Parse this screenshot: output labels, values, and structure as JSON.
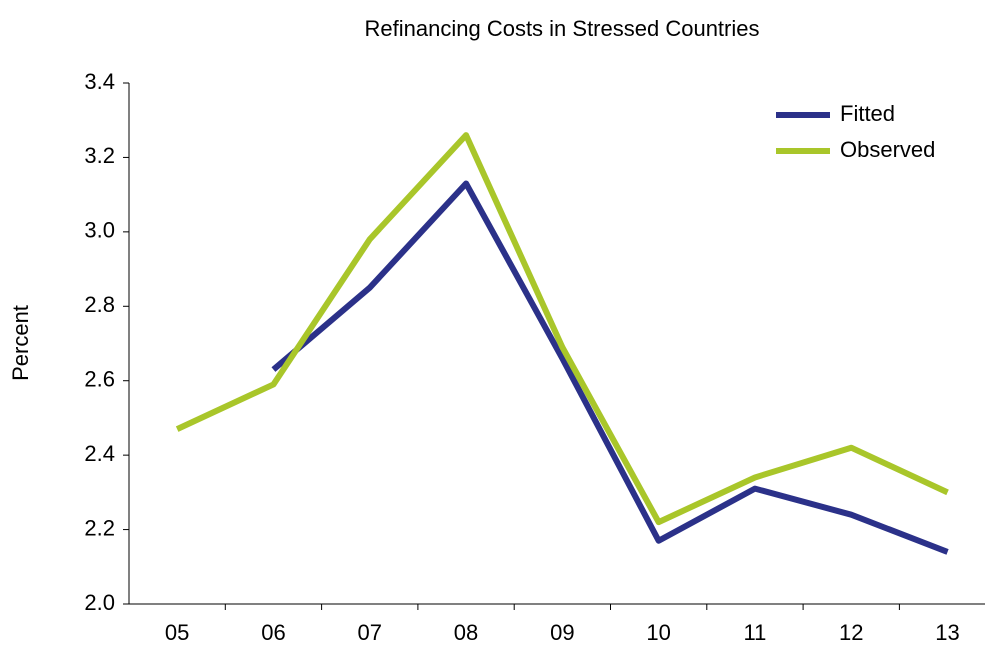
{
  "chart_data": {
    "type": "line",
    "title": "Refinancing Costs in Stressed Countries",
    "y_label": "Percent",
    "categories": [
      "05",
      "06",
      "07",
      "08",
      "09",
      "10",
      "11",
      "12",
      "13"
    ],
    "series": [
      {
        "name": "Fitted",
        "color": "#2b3189",
        "values": [
          null,
          2.63,
          2.85,
          3.13,
          2.66,
          2.17,
          2.31,
          2.24,
          2.14
        ]
      },
      {
        "name": "Observed",
        "color": "#a9c62a",
        "values": [
          2.47,
          2.59,
          2.98,
          3.26,
          2.69,
          2.22,
          2.34,
          2.42,
          2.3
        ]
      }
    ],
    "ylim": [
      2.0,
      3.4
    ],
    "yticks": [
      {
        "value": 2.0,
        "label": "2.0"
      },
      2.2,
      2.4,
      2.6,
      2.8,
      {
        "value": 3.0,
        "label": "3.0"
      },
      3.2,
      3.4
    ],
    "legend": "top-right"
  }
}
